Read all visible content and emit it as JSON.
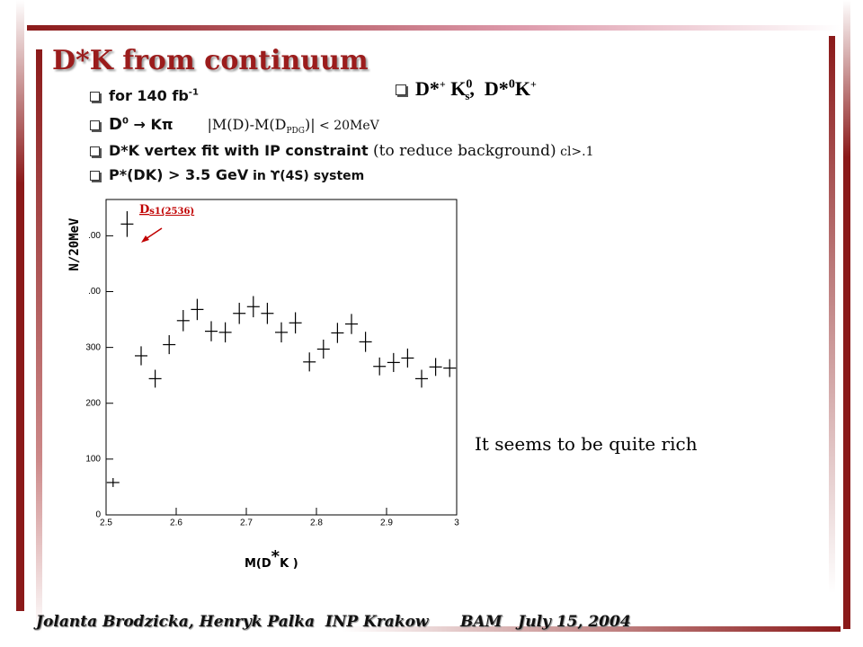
{
  "title": "D*K  from continuum",
  "bullets": [
    [
      "for 140 fb",
      "-1"
    ],
    [
      "D",
      "0",
      " → Kπ",
      "|M(D)-M(D",
      "PDG",
      ")|",
      " < 20MeV"
    ],
    [
      "D*K vertex fit with IP constraint",
      " (to reduce background)",
      " cl>.1"
    ],
    [
      "P*(DK) > 3.5 GeV",
      " in ϒ(4S) system"
    ]
  ],
  "channel": [
    "D*",
    "+",
    " K",
    "0",
    "s",
    ",  D*",
    "0",
    "K",
    "+"
  ],
  "comment": "It seems to be quite rich",
  "footer": "Jolanta Brodzicka, Henryk Palka  INP Krakow      BAM   July 15, 2004",
  "chart_data": {
    "type": "scatter",
    "x": [
      2.51,
      2.53,
      2.55,
      2.57,
      2.59,
      2.61,
      2.63,
      2.65,
      2.67,
      2.69,
      2.71,
      2.73,
      2.75,
      2.77,
      2.79,
      2.81,
      2.83,
      2.85,
      2.87,
      2.89,
      2.91,
      2.93,
      2.95,
      2.97,
      2.99
    ],
    "values": [
      58,
      521,
      285,
      244,
      305,
      348,
      368,
      329,
      327,
      361,
      373,
      361,
      327,
      344,
      274,
      297,
      326,
      342,
      310,
      266,
      273,
      281,
      244,
      265,
      263
    ],
    "errors": [
      8,
      23,
      17,
      16,
      17,
      19,
      19,
      18,
      18,
      19,
      19,
      19,
      18,
      19,
      17,
      17,
      18,
      18,
      18,
      16,
      17,
      17,
      16,
      16,
      16
    ],
    "xlim": [
      2.5,
      3.0
    ],
    "ylim": [
      0,
      565
    ],
    "xticks": [
      2.5,
      2.6,
      2.7,
      2.8,
      2.9,
      3
    ],
    "yticks": [
      0,
      100,
      200,
      300,
      {
        "value": 400,
        "label": ".00"
      },
      {
        "value": 500,
        "label": ".00"
      }
    ],
    "ylabel": "N/20MeV",
    "xlabel": [
      "M(D",
      "*",
      "K )"
    ],
    "annotation": [
      "D",
      "s1(2536)"
    ],
    "color": "#000000"
  }
}
